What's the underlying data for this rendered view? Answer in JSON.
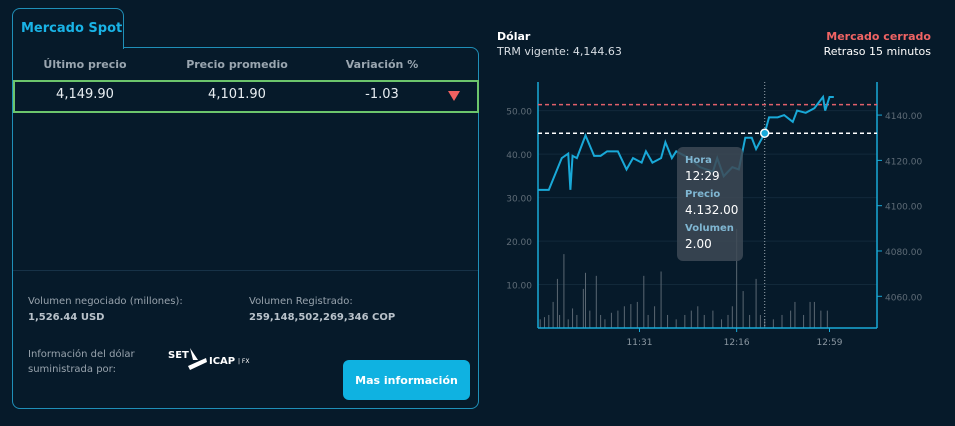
{
  "left_panel": {
    "tab_label": "Mercado Spot",
    "columns": [
      "Último precio",
      "Precio promedio",
      "Variación %"
    ],
    "row": {
      "last_price": "4,149.90",
      "avg_price": "4,101.90",
      "variation": "-1.03",
      "trend_icon": "triangle-down-icon",
      "trend_color": "#f06060"
    },
    "volume_traded_label": "Volumen negociado (millones):",
    "volume_traded_value": "1,526.44 USD",
    "volume_registered_label": "Volumen Registrado:",
    "volume_registered_value": "259,148,502,269,346 COP",
    "provider_label": "Información del dólar suministrada por:",
    "provider_logo_text": "SET ICAP | FX",
    "more_info_button": "Mas información",
    "accent_color": "#0fb2e1"
  },
  "right_panel": {
    "title": "Dólar",
    "trm": "TRM vigente: 4,144.63",
    "market_status": "Mercado cerrado",
    "delay": "Retraso 15 minutos"
  },
  "tooltip": {
    "hora_label": "Hora",
    "hora_value": "12:29",
    "precio_label": "Precio",
    "precio_value": "4.132.00",
    "volumen_label": "Volumen",
    "volumen_value": "2.00"
  },
  "chart_data": {
    "type": "line",
    "x_ticks": [
      "11:31",
      "12:16",
      "12:59"
    ],
    "left_axis": {
      "ticks": [
        "10.00",
        "20.00",
        "30.00",
        "40.00",
        "50.00"
      ],
      "range": [
        0,
        56.6
      ],
      "series": "volume"
    },
    "right_axis": {
      "ticks": [
        "4060.00",
        "4080.00",
        "4100.00",
        "4120.00",
        "4140.00"
      ],
      "range": [
        4046,
        4154.6
      ],
      "series": "price"
    },
    "x_range": [
      "10:44",
      "13:21"
    ],
    "reference_lines": [
      {
        "value": 4144.63,
        "color": "#e0606a",
        "style": "dashed"
      },
      {
        "value": 4132,
        "color": "#ffffff",
        "style": "dashed"
      }
    ],
    "hover": {
      "time": "12:29",
      "price": 4132,
      "volume": 2
    },
    "price_color": "#19a9d8",
    "volume_color": "#5a6772",
    "price": [
      [
        "10:44",
        4107
      ],
      [
        "10:49",
        4107
      ],
      [
        "10:52",
        4114
      ],
      [
        "10:55",
        4121
      ],
      [
        "10:58",
        4123
      ],
      [
        "10:59",
        4107
      ],
      [
        "11:00",
        4122
      ],
      [
        "11:02",
        4121
      ],
      [
        "11:06",
        4131
      ],
      [
        "11:10",
        4122
      ],
      [
        "11:13",
        4122
      ],
      [
        "11:16",
        4124
      ],
      [
        "11:21",
        4124
      ],
      [
        "11:25",
        4116
      ],
      [
        "11:28",
        4121
      ],
      [
        "11:32",
        4119
      ],
      [
        "11:34",
        4124
      ],
      [
        "11:37",
        4119
      ],
      [
        "11:41",
        4121
      ],
      [
        "11:43",
        4128
      ],
      [
        "11:46",
        4121
      ],
      [
        "11:48",
        4124
      ],
      [
        "11:54",
        4121
      ],
      [
        "11:59",
        4117
      ],
      [
        "12:05",
        4115
      ],
      [
        "12:07",
        4121
      ],
      [
        "12:10",
        4113
      ],
      [
        "12:14",
        4117
      ],
      [
        "12:17",
        4116
      ],
      [
        "12:20",
        4130
      ],
      [
        "12:23",
        4130
      ],
      [
        "12:25",
        4125
      ],
      [
        "12:29",
        4132
      ],
      [
        "12:31",
        4139
      ],
      [
        "12:35",
        4139
      ],
      [
        "12:38",
        4140
      ],
      [
        "12:42",
        4137
      ],
      [
        "12:44",
        4142
      ],
      [
        "12:48",
        4141
      ],
      [
        "12:52",
        4143
      ],
      [
        "12:56",
        4148
      ],
      [
        "12:57",
        4142
      ],
      [
        "12:59",
        4148
      ],
      [
        "13:01",
        4148
      ]
    ],
    "volume": [
      [
        "10:45",
        2
      ],
      [
        "10:47",
        2.5
      ],
      [
        "10:49",
        3
      ],
      [
        "10:51",
        6
      ],
      [
        "10:53",
        11.3
      ],
      [
        "10:54",
        3
      ],
      [
        "10:56",
        17
      ],
      [
        "10:58",
        2
      ],
      [
        "11:00",
        4.5
      ],
      [
        "11:02",
        3
      ],
      [
        "11:05",
        9
      ],
      [
        "11:06",
        12.7
      ],
      [
        "11:08",
        4
      ],
      [
        "11:11",
        12
      ],
      [
        "11:13",
        3
      ],
      [
        "11:15",
        2
      ],
      [
        "11:18",
        3.5
      ],
      [
        "11:21",
        4
      ],
      [
        "11:24",
        5
      ],
      [
        "11:27",
        5.5
      ],
      [
        "11:30",
        6
      ],
      [
        "11:33",
        12
      ],
      [
        "11:35",
        3
      ],
      [
        "11:38",
        5
      ],
      [
        "11:41",
        13
      ],
      [
        "11:44",
        3
      ],
      [
        "11:48",
        2
      ],
      [
        "11:52",
        3
      ],
      [
        "11:55",
        4
      ],
      [
        "11:58",
        5
      ],
      [
        "12:01",
        3
      ],
      [
        "12:05",
        4
      ],
      [
        "12:09",
        2
      ],
      [
        "12:12",
        3
      ],
      [
        "12:14",
        5
      ],
      [
        "12:16",
        22.8
      ],
      [
        "12:19",
        8.5
      ],
      [
        "12:22",
        3
      ],
      [
        "12:25",
        11.3
      ],
      [
        "12:27",
        3
      ],
      [
        "12:29",
        2
      ],
      [
        "12:33",
        2
      ],
      [
        "12:37",
        3
      ],
      [
        "12:41",
        4
      ],
      [
        "12:43",
        6
      ],
      [
        "12:47",
        3
      ],
      [
        "12:50",
        6
      ],
      [
        "12:52",
        6
      ],
      [
        "12:55",
        4
      ],
      [
        "12:58",
        4
      ]
    ]
  }
}
